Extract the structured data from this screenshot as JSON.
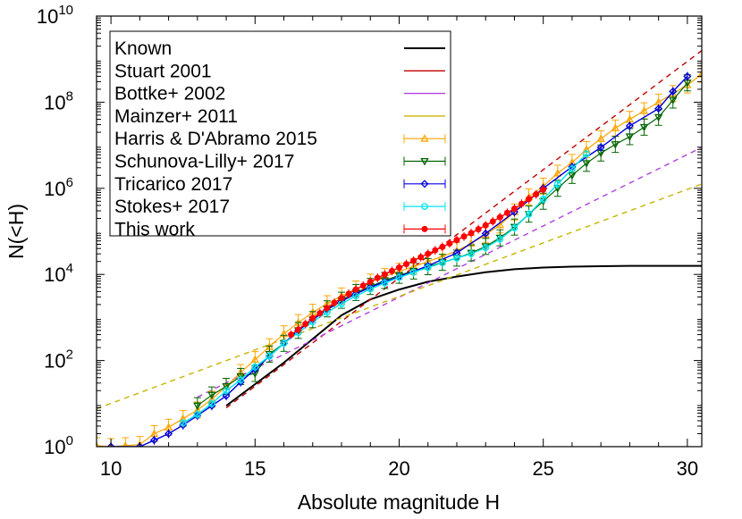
{
  "chart_data": {
    "type": "line",
    "title": "",
    "xlabel": "Absolute magnitude H",
    "ylabel": "N(<H)",
    "xlim": [
      9.5,
      30.5
    ],
    "ylim_log10": [
      0,
      10
    ],
    "y_scale": "log",
    "grid": false,
    "legend_position": "top-left",
    "x_ticks": [
      {
        "value": 10,
        "label": "10"
      },
      {
        "value": 15,
        "label": "15"
      },
      {
        "value": 20,
        "label": "20"
      },
      {
        "value": 25,
        "label": "25"
      },
      {
        "value": 30,
        "label": "30"
      }
    ],
    "y_ticks": [
      {
        "exp": 0,
        "base": "10",
        "sup": "0"
      },
      {
        "exp": 2,
        "base": "10",
        "sup": "2"
      },
      {
        "exp": 4,
        "base": "10",
        "sup": "4"
      },
      {
        "exp": 6,
        "base": "10",
        "sup": "6"
      },
      {
        "exp": 8,
        "base": "10",
        "sup": "8"
      },
      {
        "exp": 10,
        "base": "10",
        "sup": "10"
      }
    ],
    "series": [
      {
        "name": "Known",
        "style": "solid",
        "color": "#000000",
        "x": [
          14,
          16,
          18,
          19,
          20,
          21,
          22,
          23,
          24,
          25,
          26,
          27,
          28,
          29,
          30,
          30.5
        ],
        "y_log10": [
          0.95,
          1.95,
          3.05,
          3.42,
          3.65,
          3.83,
          3.95,
          4.05,
          4.12,
          4.16,
          4.18,
          4.19,
          4.2,
          4.2,
          4.2,
          4.2
        ]
      },
      {
        "name": "Stuart 2001",
        "style": "dash",
        "color": "#c00000",
        "x": [
          14,
          30.5
        ],
        "y_log10": [
          0.9,
          9.2
        ]
      },
      {
        "name": "Bottke+ 2002",
        "style": "dash",
        "color": "#b040e0",
        "x": [
          13,
          30.5
        ],
        "y_log10": [
          1.15,
          6.95
        ]
      },
      {
        "name": "Mainzer+ 2011",
        "style": "dash",
        "color": "#c8b400",
        "x": [
          9.5,
          30.5
        ],
        "y_log10": [
          0.88,
          6.1
        ]
      },
      {
        "name": "Harris & D'Abramo 2015",
        "style": "points",
        "color": "#ffa500",
        "marker": "triangle-up",
        "x": [
          9.5,
          10,
          10.5,
          11,
          11.5,
          12,
          12.5,
          13,
          13.5,
          14,
          14.5,
          15,
          15.5,
          16,
          16.5,
          17,
          17.5,
          18,
          18.5,
          19,
          19.5,
          20,
          20.5,
          21,
          21.5,
          22,
          22.5,
          23,
          23.5,
          24,
          24.5,
          25,
          25.5,
          26,
          26.5,
          27,
          27.5,
          28,
          28.5,
          29,
          29.5,
          30,
          30.5
        ],
        "y_log10": [
          0.02,
          0.0,
          0.02,
          0.05,
          0.3,
          0.45,
          0.65,
          0.85,
          1.1,
          1.4,
          1.72,
          2.02,
          2.32,
          2.62,
          2.88,
          3.12,
          3.32,
          3.5,
          3.66,
          3.82,
          3.95,
          4.07,
          4.18,
          4.3,
          4.42,
          4.55,
          4.72,
          4.92,
          5.15,
          5.45,
          5.8,
          6.05,
          6.35,
          6.6,
          6.9,
          7.15,
          7.4,
          7.6,
          7.8,
          8.0,
          8.2,
          8.4,
          8.65
        ]
      },
      {
        "name": "Schunova-Lilly+ 2017",
        "style": "points",
        "color": "#006400",
        "marker": "triangle-down",
        "x": [
          13,
          13.5,
          14,
          14.5,
          15,
          15.5,
          16,
          16.5,
          17,
          17.5,
          18,
          18.5,
          19,
          19.5,
          20,
          20.5,
          21,
          21.5,
          22,
          22.5,
          23,
          23.5,
          24,
          24.5,
          25,
          25.5,
          26,
          26.5,
          27,
          27.5,
          28,
          28.5,
          29,
          29.5,
          30
        ],
        "y_log10": [
          0.95,
          1.2,
          1.4,
          1.63,
          1.7,
          2.15,
          2.4,
          2.7,
          2.95,
          3.2,
          3.4,
          3.58,
          3.72,
          3.86,
          3.98,
          4.08,
          4.18,
          4.28,
          4.38,
          4.5,
          4.65,
          4.85,
          5.1,
          5.4,
          5.7,
          6.0,
          6.3,
          6.58,
          6.82,
          7.02,
          7.2,
          7.42,
          7.65,
          8.05,
          8.45
        ]
      },
      {
        "name": "Tricarico 2017",
        "style": "line-points",
        "color": "#0000e0",
        "marker": "diamond",
        "x": [
          10,
          11,
          11.5,
          12,
          12.5,
          13,
          13.5,
          14,
          14.5,
          15,
          15.5,
          16,
          16.5,
          17,
          17.5,
          18,
          18.5,
          19,
          19.5,
          20,
          21,
          22,
          23,
          24,
          25,
          26,
          27,
          28,
          29,
          29.5,
          30
        ],
        "y_log10": [
          0.0,
          0.0,
          0.15,
          0.3,
          0.5,
          0.72,
          0.95,
          1.18,
          1.5,
          1.8,
          2.1,
          2.4,
          2.7,
          2.95,
          3.18,
          3.38,
          3.55,
          3.7,
          3.83,
          3.95,
          4.2,
          4.5,
          4.95,
          5.45,
          6.0,
          6.5,
          6.95,
          7.45,
          7.85,
          8.25,
          8.6
        ]
      },
      {
        "name": "Stokes+ 2017",
        "style": "line-points",
        "color": "#00e5ee",
        "marker": "circle",
        "x": [
          12.5,
          13,
          13.5,
          14,
          14.5,
          15,
          15.5,
          16,
          16.5,
          17,
          17.5,
          18,
          18.5,
          19,
          19.5,
          20,
          20.5,
          21,
          21.5,
          22,
          22.5,
          23,
          23.5,
          24,
          24.5,
          25,
          25.5,
          26,
          26.5
        ],
        "y_log10": [
          0.55,
          0.75,
          1.0,
          1.3,
          1.55,
          1.85,
          2.1,
          2.4,
          2.65,
          2.9,
          3.12,
          3.32,
          3.5,
          3.66,
          3.8,
          3.93,
          4.05,
          4.16,
          4.27,
          4.38,
          4.48,
          4.62,
          4.82,
          5.08,
          5.4,
          5.75,
          6.1,
          6.45,
          6.8
        ]
      },
      {
        "name": "This work",
        "style": "line-points",
        "color": "#ff0000",
        "marker": "circle-filled",
        "x": [
          16.25,
          16.5,
          16.75,
          17,
          17.25,
          17.5,
          17.75,
          18,
          18.25,
          18.5,
          18.75,
          19,
          19.25,
          19.5,
          19.75,
          20,
          20.25,
          20.5,
          20.75,
          21,
          21.25,
          21.5,
          21.75,
          22,
          22.25,
          22.5,
          22.75,
          23,
          23.25,
          23.5,
          23.75,
          24,
          24.25,
          24.5,
          24.75,
          25
        ],
        "y_log10": [
          2.6,
          2.72,
          2.85,
          2.98,
          3.1,
          3.22,
          3.34,
          3.45,
          3.55,
          3.65,
          3.74,
          3.83,
          3.92,
          4.0,
          4.08,
          4.16,
          4.24,
          4.32,
          4.4,
          4.48,
          4.56,
          4.64,
          4.72,
          4.8,
          4.88,
          4.96,
          5.05,
          5.14,
          5.23,
          5.33,
          5.43,
          5.53,
          5.64,
          5.75,
          5.86,
          5.97
        ]
      }
    ]
  }
}
